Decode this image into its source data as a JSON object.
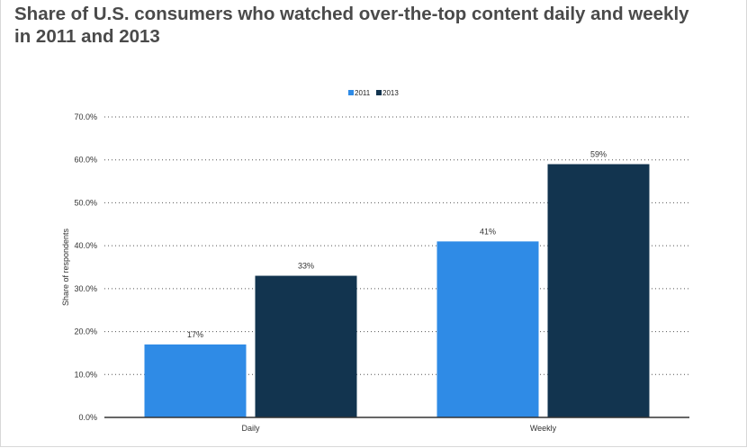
{
  "title": "Share of U.S. consumers who watched over-the-top content daily and weekly in 2011 and 2013",
  "chart_data": {
    "type": "bar",
    "title": "Share of U.S. consumers who watched over-the-top content daily and weekly in 2011 and 2013",
    "categories": [
      "Daily",
      "Weekly"
    ],
    "series": [
      {
        "name": "2011",
        "values": [
          17,
          41
        ],
        "labels": [
          "17%",
          "41%"
        ],
        "color": "#2f8be6"
      },
      {
        "name": "2013",
        "values": [
          33,
          59
        ],
        "labels": [
          "33%",
          "59%"
        ],
        "color": "#12344f"
      }
    ],
    "ylabel": "Share of respondents",
    "xlabel": "",
    "ylim": [
      0,
      70
    ],
    "yticks": [
      0,
      10,
      20,
      30,
      40,
      50,
      60,
      70
    ],
    "ytick_labels": [
      "0.0%",
      "10.0%",
      "20.0%",
      "30.0%",
      "40.0%",
      "50.0%",
      "60.0%",
      "70.0%"
    ],
    "grid": true,
    "legend_position": "top-center"
  }
}
